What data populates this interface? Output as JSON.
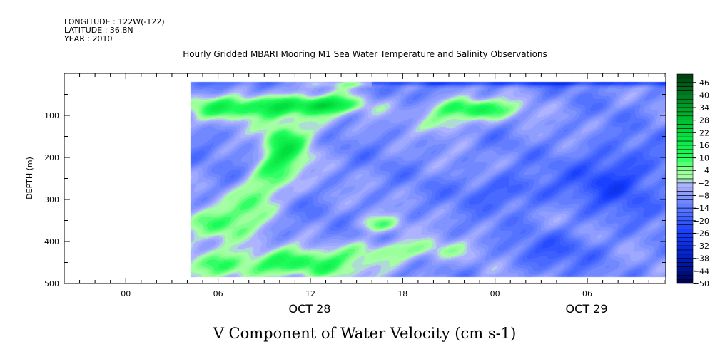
{
  "header": {
    "longitude": "LONGITUDE : 122W(-122)",
    "latitude": "LATITUDE : 36.8N",
    "year": "YEAR : 2010",
    "title": "Hourly Gridded MBARI Mooring M1 Sea Water Temperature and Salinity Observations"
  },
  "chart_data": {
    "type": "heatmap",
    "title": "Hourly Gridded MBARI Mooring M1 Sea Water Temperature and Salinity Observations",
    "xlabel": "V Component of Water Velocity (cm s-1)",
    "ylabel": "DEPTH (m)",
    "x_hours_range": [
      -4,
      35.1
    ],
    "x_ticks": [
      {
        "h": 0,
        "label": "00"
      },
      {
        "h": 6,
        "label": "06"
      },
      {
        "h": 12,
        "label": "12"
      },
      {
        "h": 18,
        "label": "18"
      },
      {
        "h": 24,
        "label": "00"
      },
      {
        "h": 30,
        "label": "06"
      }
    ],
    "date_labels": [
      {
        "h": 12,
        "label": "OCT 28"
      },
      {
        "h": 30,
        "label": "OCT 29"
      }
    ],
    "y_range": [
      0,
      500
    ],
    "y_reversed": true,
    "y_ticks": [
      100,
      200,
      300,
      400,
      500
    ],
    "data_extent": {
      "hours": [
        4.2,
        35.1
      ],
      "depth": [
        20,
        485
      ]
    },
    "colorbar": {
      "min": -50,
      "max": 50,
      "step": 2,
      "labels": [
        "46",
        "40",
        "34",
        "28",
        "22",
        "16",
        "10",
        "4",
        "-2",
        "-8",
        "-14",
        "-20",
        "-26",
        "-32",
        "-38",
        "-44",
        "-50"
      ]
    },
    "colors": {
      "low": "#000050",
      "mid_neg": "#2040ff",
      "near_zero_neg": "#b4b8ff",
      "near_zero_pos": "#a8ffa8",
      "mid_pos": "#10ff50",
      "high": "#003c10"
    }
  }
}
